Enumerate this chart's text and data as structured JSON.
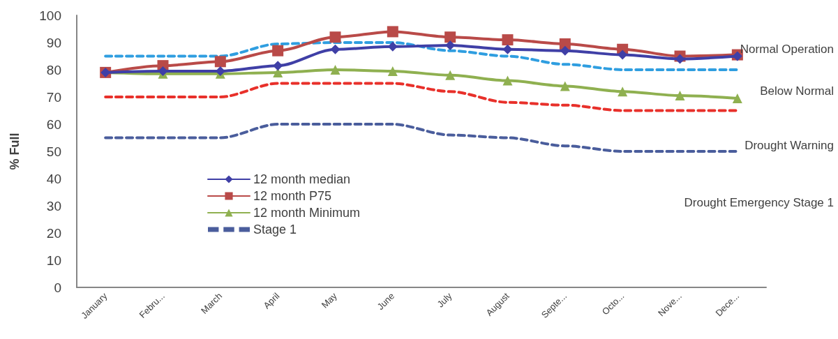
{
  "chart_data": {
    "type": "line",
    "ylabel": "% Full",
    "categories": [
      "January",
      "Febru...",
      "March",
      "April",
      "May",
      "June",
      "July",
      "August",
      "Septe...",
      "Octo...",
      "Nove...",
      "Dece..."
    ],
    "ylim": [
      0,
      100
    ],
    "yticks": [
      0,
      10,
      20,
      30,
      40,
      50,
      60,
      70,
      80,
      90,
      100
    ],
    "grid": false,
    "legend": "bottom left",
    "series": [
      {
        "name": "12 month median",
        "color": "#3f3fa6",
        "marker": "diamond",
        "line_style": "solid",
        "values": [
          79,
          79.5,
          79.5,
          81.5,
          87.5,
          88.5,
          89,
          87.5,
          87,
          85.5,
          84,
          85
        ]
      },
      {
        "name": "12 month P75",
        "color": "#b94a48",
        "marker": "square",
        "line_style": "solid",
        "values": [
          79,
          81.5,
          83,
          87,
          92,
          94,
          92,
          91,
          89.5,
          87.5,
          85,
          85.5
        ]
      },
      {
        "name": "12 month Minimum",
        "color": "#8fb050",
        "marker": "triangle",
        "line_style": "solid",
        "values": [
          79,
          78.5,
          78.5,
          79,
          80,
          79.5,
          78,
          76,
          74,
          72,
          70.5,
          69.5
        ]
      },
      {
        "color": "#2f9ee0",
        "marker": "none",
        "line_style": "dashed",
        "values": [
          85,
          85,
          85,
          89.5,
          90,
          90,
          87,
          85,
          82,
          80,
          80,
          80
        ]
      },
      {
        "color": "#e8302a",
        "marker": "none",
        "line_style": "dashed",
        "values": [
          70,
          70,
          70,
          75,
          75,
          75,
          72,
          68,
          67,
          65,
          65,
          65
        ]
      },
      {
        "name": "Stage 1",
        "color": "#4a5d9c",
        "marker": "none",
        "line_style": "dashed",
        "values": [
          55,
          55,
          55,
          60,
          60,
          60,
          56,
          55,
          52,
          50,
          50,
          50
        ]
      }
    ],
    "annotations": [
      "Normal Operation",
      "Below Normal",
      "Drought Warning",
      "Drought Emergency Stage 1"
    ]
  }
}
